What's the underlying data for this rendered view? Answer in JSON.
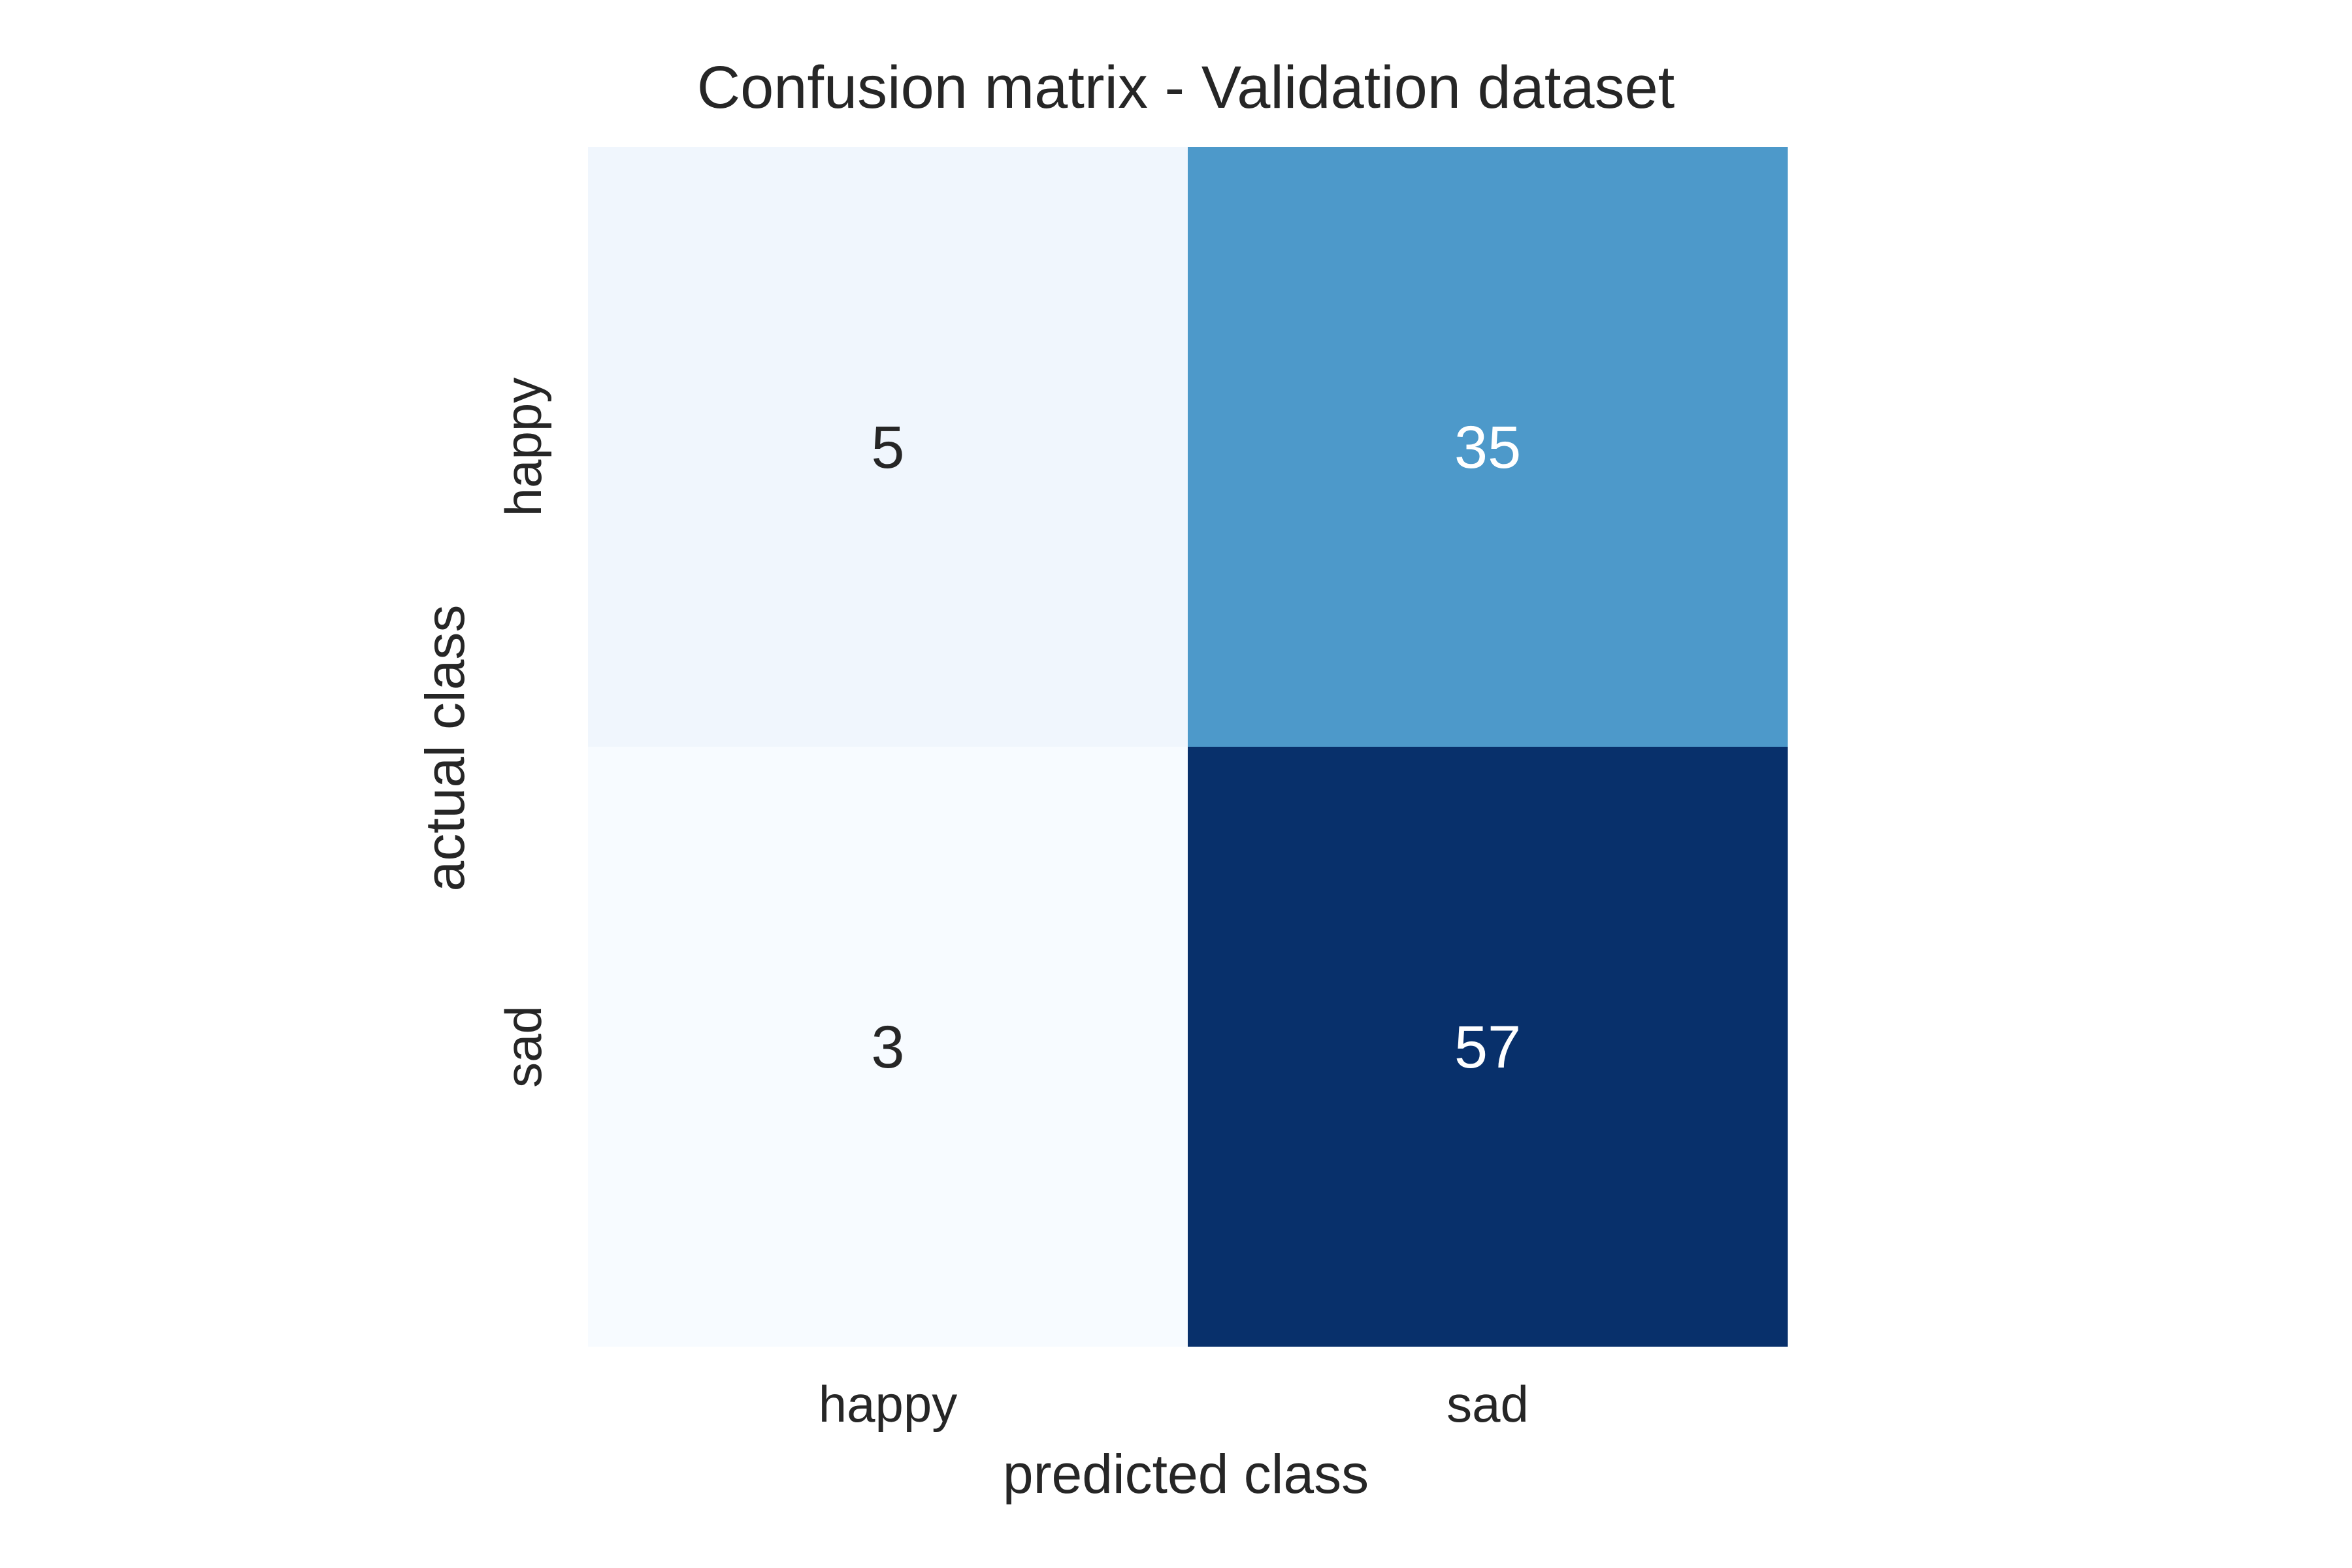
{
  "chart_data": {
    "type": "heatmap",
    "title": "Confusion matrix - Validation dataset",
    "xlabel": "predicted class",
    "ylabel": "actual class",
    "x_categories": [
      "happy",
      "sad"
    ],
    "y_categories": [
      "happy",
      "sad"
    ],
    "values": [
      [
        5,
        35
      ],
      [
        3,
        57
      ]
    ],
    "colormap": "Blues",
    "colorbar": false,
    "colors": {
      "text_dark": "#262626",
      "text_light": "#ffffff",
      "background": "#ffffff"
    }
  }
}
